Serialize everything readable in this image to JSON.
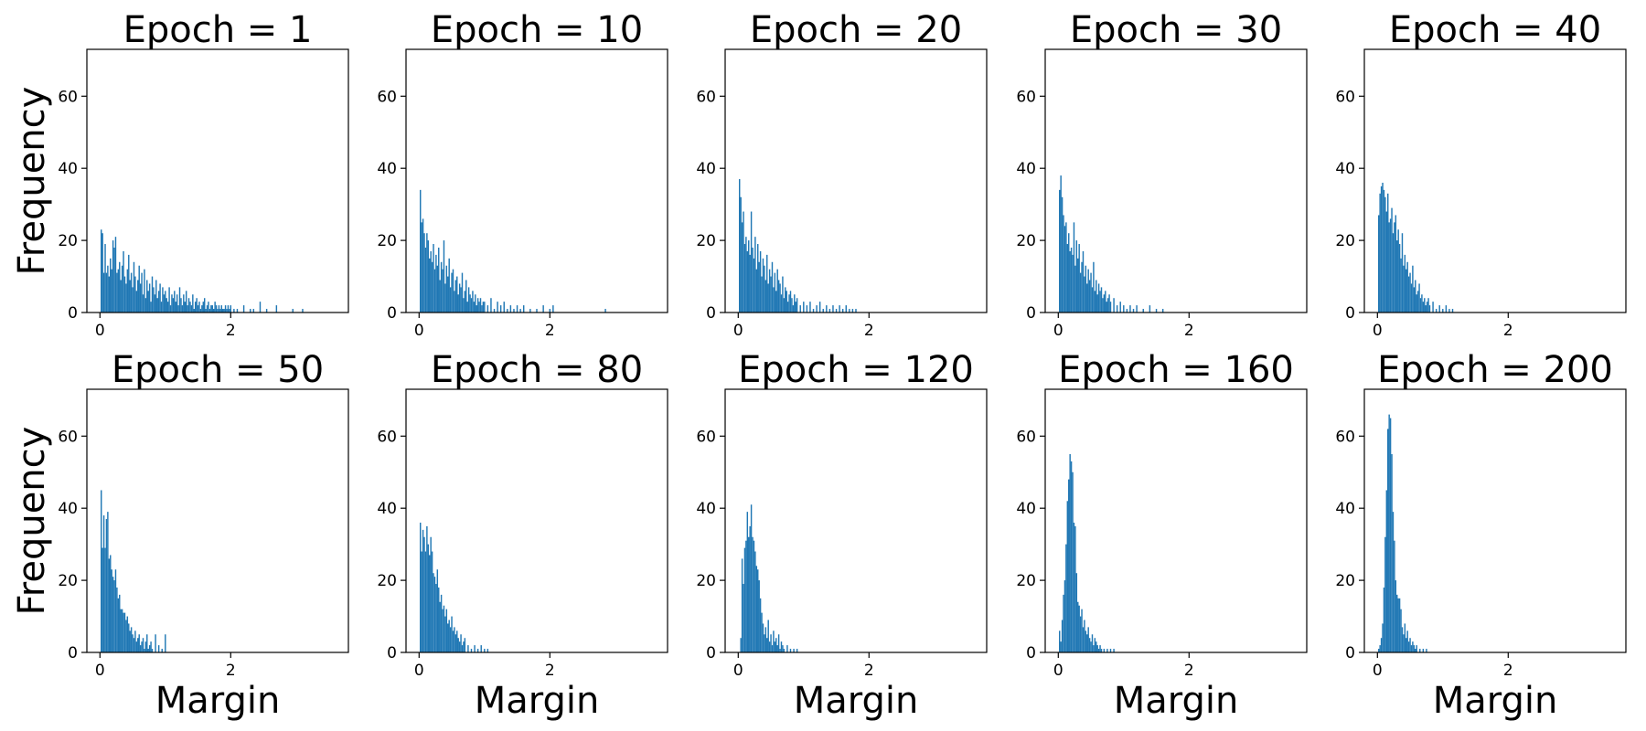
{
  "figure": {
    "bar_color": "#1f77b4",
    "ylabel": "Frequency",
    "xlabel": "Margin"
  },
  "chart_data": [
    {
      "type": "bar",
      "title": "Epoch = 1",
      "xlabel": "",
      "ylabel": "Frequency",
      "xlim": [
        -0.2,
        3.8
      ],
      "ylim": [
        0,
        73
      ],
      "xticks": [
        0,
        2
      ],
      "yticks": [
        0,
        20,
        40,
        60
      ],
      "grid": false,
      "x": [
        0.02,
        0.04,
        0.06,
        0.08,
        0.1,
        0.12,
        0.14,
        0.16,
        0.18,
        0.2,
        0.22,
        0.24,
        0.26,
        0.28,
        0.3,
        0.32,
        0.34,
        0.36,
        0.38,
        0.4,
        0.42,
        0.44,
        0.46,
        0.48,
        0.5,
        0.52,
        0.54,
        0.56,
        0.58,
        0.6,
        0.62,
        0.64,
        0.66,
        0.68,
        0.7,
        0.72,
        0.74,
        0.76,
        0.78,
        0.8,
        0.82,
        0.84,
        0.86,
        0.88,
        0.9,
        0.92,
        0.94,
        0.96,
        0.98,
        1.0,
        1.02,
        1.04,
        1.06,
        1.08,
        1.1,
        1.12,
        1.14,
        1.16,
        1.18,
        1.2,
        1.22,
        1.24,
        1.26,
        1.28,
        1.3,
        1.32,
        1.34,
        1.36,
        1.38,
        1.4,
        1.42,
        1.44,
        1.46,
        1.48,
        1.5,
        1.52,
        1.54,
        1.56,
        1.58,
        1.6,
        1.62,
        1.64,
        1.66,
        1.68,
        1.7,
        1.72,
        1.74,
        1.76,
        1.78,
        1.8,
        1.82,
        1.84,
        1.86,
        1.88,
        1.9,
        1.92,
        1.94,
        1.96,
        1.98,
        2.0,
        2.05,
        2.1,
        2.2,
        2.3,
        2.35,
        2.45,
        2.55,
        2.7,
        2.95,
        3.1
      ],
      "values": [
        23,
        22,
        11,
        19,
        11,
        13,
        10,
        15,
        12,
        20,
        18,
        21,
        11,
        12,
        14,
        9,
        13,
        17,
        10,
        8,
        12,
        16,
        9,
        11,
        7,
        14,
        10,
        6,
        9,
        13,
        8,
        11,
        5,
        12,
        4,
        9,
        6,
        8,
        3,
        10,
        7,
        5,
        9,
        4,
        6,
        8,
        3,
        7,
        5,
        6,
        4,
        3,
        7,
        2,
        5,
        4,
        6,
        3,
        5,
        2,
        7,
        4,
        2,
        5,
        3,
        6,
        2,
        4,
        3,
        2,
        5,
        1,
        3,
        4,
        2,
        3,
        1,
        2,
        3,
        4,
        1,
        2,
        3,
        1,
        2,
        2,
        1,
        3,
        2,
        1,
        2,
        1,
        2,
        1,
        1,
        2,
        1,
        2,
        1,
        2,
        1,
        1,
        2,
        1,
        1,
        3,
        1,
        2,
        1,
        1
      ]
    },
    {
      "type": "bar",
      "title": "Epoch = 10",
      "xlabel": "",
      "ylabel": "",
      "xlim": [
        -0.2,
        3.8
      ],
      "ylim": [
        0,
        73
      ],
      "xticks": [
        0,
        2
      ],
      "yticks": [
        0,
        20,
        40,
        60
      ],
      "grid": false,
      "x": [
        0.02,
        0.04,
        0.06,
        0.08,
        0.1,
        0.12,
        0.14,
        0.16,
        0.18,
        0.2,
        0.22,
        0.24,
        0.26,
        0.28,
        0.3,
        0.32,
        0.34,
        0.36,
        0.38,
        0.4,
        0.42,
        0.44,
        0.46,
        0.48,
        0.5,
        0.52,
        0.54,
        0.56,
        0.58,
        0.6,
        0.62,
        0.64,
        0.66,
        0.68,
        0.7,
        0.72,
        0.74,
        0.76,
        0.78,
        0.8,
        0.82,
        0.84,
        0.86,
        0.88,
        0.9,
        0.92,
        0.94,
        0.96,
        0.98,
        1.0,
        1.05,
        1.1,
        1.15,
        1.2,
        1.25,
        1.3,
        1.35,
        1.4,
        1.45,
        1.5,
        1.55,
        1.6,
        1.7,
        1.8,
        1.9,
        2.0,
        2.05,
        2.85
      ],
      "values": [
        34,
        25,
        26,
        22,
        18,
        22,
        20,
        15,
        17,
        14,
        19,
        12,
        16,
        13,
        18,
        9,
        14,
        12,
        20,
        8,
        13,
        10,
        15,
        7,
        11,
        12,
        6,
        9,
        10,
        5,
        8,
        7,
        11,
        4,
        6,
        9,
        3,
        7,
        5,
        4,
        6,
        3,
        5,
        2,
        4,
        3,
        4,
        2,
        3,
        3,
        2,
        4,
        1,
        3,
        2,
        3,
        1,
        2,
        1,
        2,
        1,
        2,
        1,
        1,
        2,
        1,
        2,
        1
      ]
    },
    {
      "type": "bar",
      "title": "Epoch = 20",
      "xlabel": "",
      "ylabel": "",
      "xlim": [
        -0.2,
        3.8
      ],
      "ylim": [
        0,
        73
      ],
      "xticks": [
        0,
        2
      ],
      "yticks": [
        0,
        20,
        40,
        60
      ],
      "grid": false,
      "x": [
        0.02,
        0.04,
        0.06,
        0.08,
        0.1,
        0.12,
        0.14,
        0.16,
        0.18,
        0.2,
        0.22,
        0.24,
        0.26,
        0.28,
        0.3,
        0.32,
        0.34,
        0.36,
        0.38,
        0.4,
        0.42,
        0.44,
        0.46,
        0.48,
        0.5,
        0.52,
        0.54,
        0.56,
        0.58,
        0.6,
        0.62,
        0.64,
        0.66,
        0.68,
        0.7,
        0.72,
        0.74,
        0.76,
        0.78,
        0.8,
        0.82,
        0.84,
        0.86,
        0.88,
        0.9,
        0.95,
        1.0,
        1.05,
        1.1,
        1.15,
        1.2,
        1.25,
        1.3,
        1.35,
        1.4,
        1.45,
        1.5,
        1.55,
        1.6,
        1.65,
        1.7,
        1.75,
        1.8
      ],
      "values": [
        37,
        32,
        25,
        28,
        19,
        21,
        17,
        20,
        16,
        28,
        18,
        15,
        21,
        12,
        19,
        14,
        17,
        10,
        15,
        13,
        9,
        16,
        8,
        12,
        10,
        14,
        7,
        11,
        6,
        12,
        9,
        8,
        5,
        10,
        4,
        7,
        6,
        3,
        5,
        6,
        4,
        2,
        5,
        3,
        4,
        2,
        3,
        2,
        3,
        1,
        2,
        3,
        1,
        2,
        1,
        2,
        1,
        2,
        1,
        2,
        1,
        1,
        1
      ]
    },
    {
      "type": "bar",
      "title": "Epoch = 30",
      "xlabel": "",
      "ylabel": "",
      "xlim": [
        -0.2,
        3.8
      ],
      "ylim": [
        0,
        73
      ],
      "xticks": [
        0,
        2
      ],
      "yticks": [
        0,
        20,
        40,
        60
      ],
      "grid": false,
      "x": [
        0.02,
        0.04,
        0.06,
        0.08,
        0.1,
        0.12,
        0.14,
        0.16,
        0.18,
        0.2,
        0.22,
        0.24,
        0.26,
        0.28,
        0.3,
        0.32,
        0.34,
        0.36,
        0.38,
        0.4,
        0.42,
        0.44,
        0.46,
        0.48,
        0.5,
        0.52,
        0.54,
        0.56,
        0.58,
        0.6,
        0.62,
        0.64,
        0.66,
        0.68,
        0.7,
        0.72,
        0.74,
        0.76,
        0.78,
        0.8,
        0.85,
        0.9,
        0.95,
        1.0,
        1.05,
        1.1,
        1.15,
        1.2,
        1.3,
        1.4,
        1.5,
        1.6
      ],
      "values": [
        34,
        38,
        32,
        27,
        24,
        25,
        19,
        22,
        17,
        18,
        16,
        25,
        13,
        20,
        15,
        19,
        11,
        14,
        17,
        10,
        13,
        8,
        12,
        9,
        11,
        7,
        14,
        6,
        9,
        5,
        8,
        6,
        7,
        4,
        5,
        6,
        3,
        4,
        5,
        3,
        4,
        2,
        3,
        2,
        1,
        2,
        1,
        2,
        1,
        2,
        1,
        1
      ]
    },
    {
      "type": "bar",
      "title": "Epoch = 40",
      "xlabel": "",
      "ylabel": "",
      "xlim": [
        -0.2,
        3.8
      ],
      "ylim": [
        0,
        73
      ],
      "xticks": [
        0,
        2
      ],
      "yticks": [
        0,
        20,
        40,
        60
      ],
      "grid": false,
      "x": [
        0.02,
        0.04,
        0.06,
        0.08,
        0.1,
        0.12,
        0.14,
        0.16,
        0.18,
        0.2,
        0.22,
        0.24,
        0.26,
        0.28,
        0.3,
        0.32,
        0.34,
        0.36,
        0.38,
        0.4,
        0.42,
        0.44,
        0.46,
        0.48,
        0.5,
        0.52,
        0.54,
        0.56,
        0.58,
        0.6,
        0.62,
        0.64,
        0.66,
        0.68,
        0.7,
        0.72,
        0.74,
        0.76,
        0.78,
        0.8,
        0.85,
        0.9,
        0.95,
        1.0,
        1.05,
        1.1,
        1.15
      ],
      "values": [
        27,
        33,
        35,
        36,
        34,
        32,
        28,
        33,
        25,
        26,
        29,
        22,
        25,
        27,
        20,
        23,
        19,
        15,
        22,
        13,
        16,
        12,
        14,
        10,
        11,
        8,
        13,
        7,
        9,
        5,
        6,
        8,
        4,
        5,
        3,
        4,
        2,
        3,
        4,
        2,
        3,
        1,
        2,
        1,
        2,
        1,
        1
      ]
    },
    {
      "type": "bar",
      "title": "Epoch = 50",
      "xlabel": "Margin",
      "ylabel": "Frequency",
      "xlim": [
        -0.2,
        3.8
      ],
      "ylim": [
        0,
        73
      ],
      "xticks": [
        0,
        2
      ],
      "yticks": [
        0,
        20,
        40,
        60
      ],
      "grid": false,
      "x": [
        0.02,
        0.04,
        0.06,
        0.08,
        0.1,
        0.12,
        0.14,
        0.16,
        0.18,
        0.2,
        0.22,
        0.24,
        0.26,
        0.28,
        0.3,
        0.32,
        0.34,
        0.36,
        0.38,
        0.4,
        0.42,
        0.44,
        0.46,
        0.48,
        0.5,
        0.52,
        0.54,
        0.56,
        0.58,
        0.6,
        0.62,
        0.64,
        0.66,
        0.68,
        0.7,
        0.72,
        0.74,
        0.76,
        0.78,
        0.8,
        0.85,
        0.9,
        0.95,
        1.0
      ],
      "values": [
        45,
        29,
        38,
        29,
        37,
        39,
        26,
        27,
        23,
        21,
        20,
        23,
        18,
        15,
        16,
        12,
        12,
        11,
        11,
        9,
        10,
        8,
        6,
        7,
        5,
        4,
        6,
        3,
        4,
        5,
        2,
        3,
        4,
        1,
        3,
        5,
        1,
        2,
        3,
        1,
        5,
        2,
        1,
        5
      ]
    },
    {
      "type": "bar",
      "title": "Epoch = 80",
      "xlabel": "Margin",
      "ylabel": "",
      "xlim": [
        -0.2,
        3.8
      ],
      "ylim": [
        0,
        73
      ],
      "xticks": [
        0,
        2
      ],
      "yticks": [
        0,
        20,
        40,
        60
      ],
      "grid": false,
      "x": [
        0.02,
        0.04,
        0.06,
        0.08,
        0.1,
        0.12,
        0.14,
        0.16,
        0.18,
        0.2,
        0.22,
        0.24,
        0.26,
        0.28,
        0.3,
        0.32,
        0.34,
        0.36,
        0.38,
        0.4,
        0.42,
        0.44,
        0.46,
        0.48,
        0.5,
        0.52,
        0.54,
        0.56,
        0.58,
        0.6,
        0.62,
        0.64,
        0.66,
        0.68,
        0.7,
        0.75,
        0.8,
        0.85,
        0.9,
        0.95,
        1.0,
        1.05
      ],
      "values": [
        36,
        28,
        34,
        32,
        28,
        35,
        30,
        27,
        32,
        28,
        22,
        21,
        19,
        23,
        18,
        14,
        16,
        12,
        13,
        10,
        12,
        8,
        9,
        7,
        10,
        6,
        7,
        5,
        6,
        4,
        3,
        5,
        2,
        3,
        4,
        2,
        1,
        2,
        1,
        2,
        1,
        1
      ]
    },
    {
      "type": "bar",
      "title": "Epoch = 120",
      "xlabel": "Margin",
      "ylabel": "",
      "xlim": [
        -0.2,
        3.8
      ],
      "ylim": [
        0,
        73
      ],
      "xticks": [
        0,
        2
      ],
      "yticks": [
        0,
        20,
        40,
        60
      ],
      "grid": false,
      "x": [
        0.04,
        0.06,
        0.08,
        0.1,
        0.12,
        0.14,
        0.16,
        0.18,
        0.2,
        0.22,
        0.24,
        0.26,
        0.28,
        0.3,
        0.32,
        0.34,
        0.36,
        0.38,
        0.4,
        0.42,
        0.44,
        0.46,
        0.48,
        0.5,
        0.52,
        0.54,
        0.56,
        0.58,
        0.6,
        0.62,
        0.64,
        0.66,
        0.68,
        0.7,
        0.75,
        0.8,
        0.85,
        0.9
      ],
      "values": [
        4,
        26,
        19,
        29,
        31,
        39,
        32,
        35,
        41,
        32,
        31,
        28,
        24,
        23,
        20,
        15,
        11,
        8,
        5,
        7,
        4,
        9,
        3,
        5,
        2,
        6,
        3,
        4,
        2,
        5,
        1,
        3,
        2,
        1,
        2,
        1,
        1,
        1
      ]
    },
    {
      "type": "bar",
      "title": "Epoch = 160",
      "xlabel": "Margin",
      "ylabel": "",
      "xlim": [
        -0.2,
        3.8
      ],
      "ylim": [
        0,
        73
      ],
      "xticks": [
        0,
        2
      ],
      "yticks": [
        0,
        20,
        40,
        60
      ],
      "grid": false,
      "x": [
        0.02,
        0.04,
        0.06,
        0.08,
        0.1,
        0.12,
        0.14,
        0.16,
        0.18,
        0.2,
        0.22,
        0.24,
        0.26,
        0.28,
        0.3,
        0.32,
        0.34,
        0.36,
        0.38,
        0.4,
        0.42,
        0.44,
        0.46,
        0.48,
        0.5,
        0.52,
        0.54,
        0.56,
        0.58,
        0.6,
        0.62,
        0.64,
        0.66,
        0.7,
        0.75,
        0.8,
        0.85
      ],
      "values": [
        6,
        3,
        9,
        16,
        20,
        30,
        42,
        48,
        55,
        53,
        50,
        36,
        35,
        22,
        14,
        13,
        10,
        12,
        7,
        9,
        6,
        5,
        7,
        4,
        3,
        5,
        2,
        4,
        3,
        2,
        1,
        2,
        1,
        1,
        1,
        1,
        1
      ]
    },
    {
      "type": "bar",
      "title": "Epoch = 200",
      "xlabel": "Margin",
      "ylabel": "",
      "xlim": [
        -0.2,
        3.8
      ],
      "ylim": [
        0,
        73
      ],
      "xticks": [
        0,
        2
      ],
      "yticks": [
        0,
        20,
        40,
        60
      ],
      "grid": false,
      "x": [
        0.02,
        0.04,
        0.06,
        0.08,
        0.1,
        0.12,
        0.14,
        0.16,
        0.18,
        0.2,
        0.22,
        0.24,
        0.26,
        0.28,
        0.3,
        0.32,
        0.34,
        0.36,
        0.38,
        0.4,
        0.42,
        0.44,
        0.46,
        0.48,
        0.5,
        0.52,
        0.54,
        0.56,
        0.58,
        0.6,
        0.65,
        0.7,
        0.75
      ],
      "values": [
        1,
        2,
        4,
        8,
        18,
        32,
        45,
        62,
        66,
        65,
        55,
        39,
        31,
        20,
        16,
        15,
        15,
        12,
        7,
        5,
        8,
        4,
        6,
        3,
        4,
        2,
        3,
        2,
        1,
        2,
        1,
        1,
        1
      ]
    }
  ]
}
